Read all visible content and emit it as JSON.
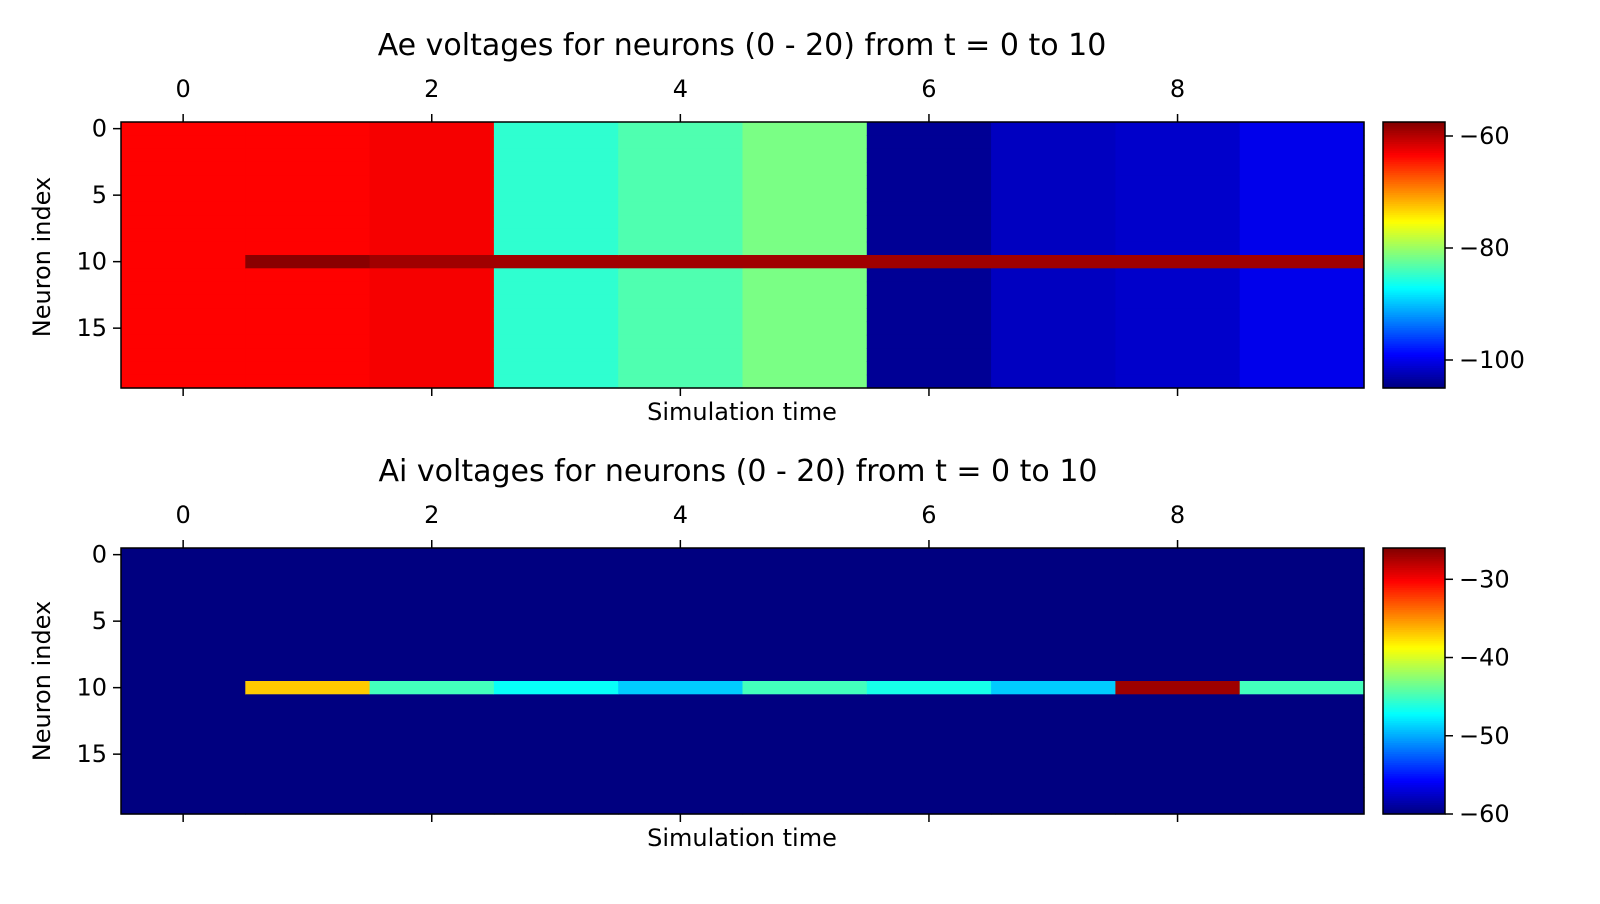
{
  "chart_data": [
    {
      "type": "heatmap",
      "title": "Ae voltages for neurons (0 - 20) from t = 0 to 10",
      "xlabel": "Simulation time",
      "ylabel": "Neuron index",
      "x_ticks": [
        "0",
        "2",
        "4",
        "6",
        "8"
      ],
      "y_ticks": [
        "0",
        "5",
        "10",
        "15"
      ],
      "colorbar_ticks": [
        "−60",
        "−80",
        "−100"
      ],
      "colorbar_tick_values": [
        -60,
        -80,
        -100
      ],
      "vmin": -105,
      "vmax": -57.5,
      "colormap": "jet",
      "n_rows": 20,
      "n_cols": 10,
      "columns": [
        {
          "t": 0,
          "base": -63.5
        },
        {
          "t": 1,
          "base": -63.5
        },
        {
          "t": 2,
          "base": -63.0
        },
        {
          "t": 3,
          "base": -85.0
        },
        {
          "t": 4,
          "base": -83.5
        },
        {
          "t": 5,
          "base": -81.5
        },
        {
          "t": 6,
          "base": -104.0
        },
        {
          "t": 7,
          "base": -102.0
        },
        {
          "t": 8,
          "base": -101.5
        },
        {
          "t": 9,
          "base": -100.0
        }
      ],
      "highlight_row": {
        "neuron": 10,
        "values": [
          -63.5,
          -58.0,
          -59.0,
          -59.0,
          -59.0,
          -59.0,
          -59.0,
          -59.0,
          -59.0,
          -59.0
        ]
      }
    },
    {
      "type": "heatmap",
      "title": "Ai voltages for neurons (0 - 20) from t = 0 to 10",
      "xlabel": "Simulation time",
      "ylabel": "Neuron index",
      "x_ticks": [
        "0",
        "2",
        "4",
        "6",
        "8"
      ],
      "y_ticks": [
        "0",
        "5",
        "10",
        "15"
      ],
      "colorbar_ticks": [
        "−30",
        "−40",
        "−50",
        "−60"
      ],
      "colorbar_tick_values": [
        -30,
        -40,
        -50,
        -60
      ],
      "vmin": -60,
      "vmax": -26,
      "colormap": "jet",
      "n_rows": 20,
      "n_cols": 10,
      "base": -60,
      "highlight_row": {
        "neuron": 10,
        "values": [
          -60,
          -37,
          -45,
          -47,
          -49,
          -45,
          -46.5,
          -49,
          -27,
          -45
        ]
      }
    }
  ]
}
